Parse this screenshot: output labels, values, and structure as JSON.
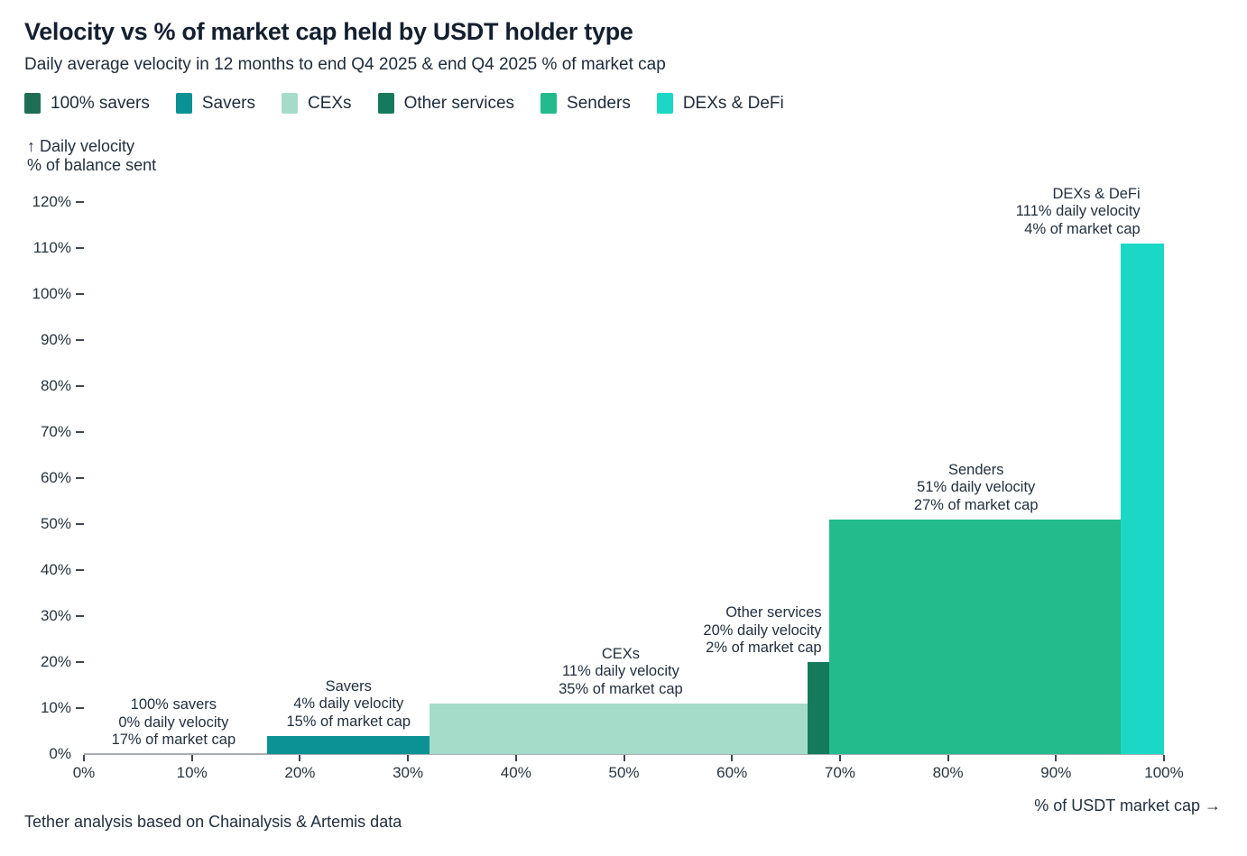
{
  "header": {
    "title": "Velocity vs % of market cap held by USDT holder type",
    "subtitle": "Daily average velocity in 12 months to end Q4 2025 & end Q4 2025 % of market cap"
  },
  "footer": {
    "source": "Tether analysis based on Chainalysis & Artemis data"
  },
  "chart_data": {
    "type": "bar",
    "variant": "variable-width-marimekko",
    "title": "Velocity vs % of market cap held by USDT holder type",
    "xlabel": "% of USDT market cap →",
    "ylabel_line1": "↑ Daily velocity",
    "ylabel_line2": "% of balance sent",
    "xlim": [
      0,
      100
    ],
    "ylim": [
      0,
      120
    ],
    "grid": false,
    "legend_position": "top",
    "x_ticks": [
      "0%",
      "10%",
      "20%",
      "30%",
      "40%",
      "50%",
      "60%",
      "70%",
      "80%",
      "90%",
      "100%"
    ],
    "y_ticks": [
      "0%",
      "10%",
      "20%",
      "30%",
      "40%",
      "50%",
      "60%",
      "70%",
      "80%",
      "90%",
      "100%",
      "110%",
      "120%"
    ],
    "series": [
      {
        "name": "100% savers",
        "color": "#1e6e55",
        "velocity_pct": 0,
        "market_cap_pct": 17,
        "cap_start_pct": 0,
        "annotation": [
          "100% savers",
          "0% daily velocity",
          "17% of market cap"
        ],
        "label_align": "center",
        "label_anchor_pct": 8.3
      },
      {
        "name": "Savers",
        "color": "#0b9295",
        "velocity_pct": 4,
        "market_cap_pct": 15,
        "cap_start_pct": 17,
        "annotation": [
          "Savers",
          "4% daily velocity",
          "15% of market cap"
        ],
        "label_align": "center",
        "label_anchor_pct": 24.5
      },
      {
        "name": "CEXs",
        "color": "#a5dbc9",
        "velocity_pct": 11,
        "market_cap_pct": 35,
        "cap_start_pct": 32,
        "annotation": [
          "CEXs",
          "11% daily velocity",
          "35% of market cap"
        ],
        "label_align": "center",
        "label_anchor_pct": 49.7
      },
      {
        "name": "Other services",
        "color": "#157a5c",
        "velocity_pct": 20,
        "market_cap_pct": 2,
        "cap_start_pct": 67,
        "annotation": [
          "Other services",
          "20% daily velocity",
          "2% of market cap"
        ],
        "label_align": "right",
        "label_anchor_pct": 68.3
      },
      {
        "name": "Senders",
        "color": "#23ba8c",
        "velocity_pct": 51,
        "market_cap_pct": 27,
        "cap_start_pct": 69,
        "annotation": [
          "Senders",
          "51% daily velocity",
          "27% of market cap"
        ],
        "label_align": "center",
        "label_anchor_pct": 82.6
      },
      {
        "name": "DEXs & DeFi",
        "color": "#1ad8c5",
        "velocity_pct": 111,
        "market_cap_pct": 4,
        "cap_start_pct": 96,
        "annotation": [
          "DEXs & DeFi",
          "111% daily velocity",
          "4% of market cap"
        ],
        "label_align": "right",
        "label_anchor_pct": 97.8
      }
    ],
    "source": "Tether analysis based on Chainalysis & Artemis data"
  }
}
